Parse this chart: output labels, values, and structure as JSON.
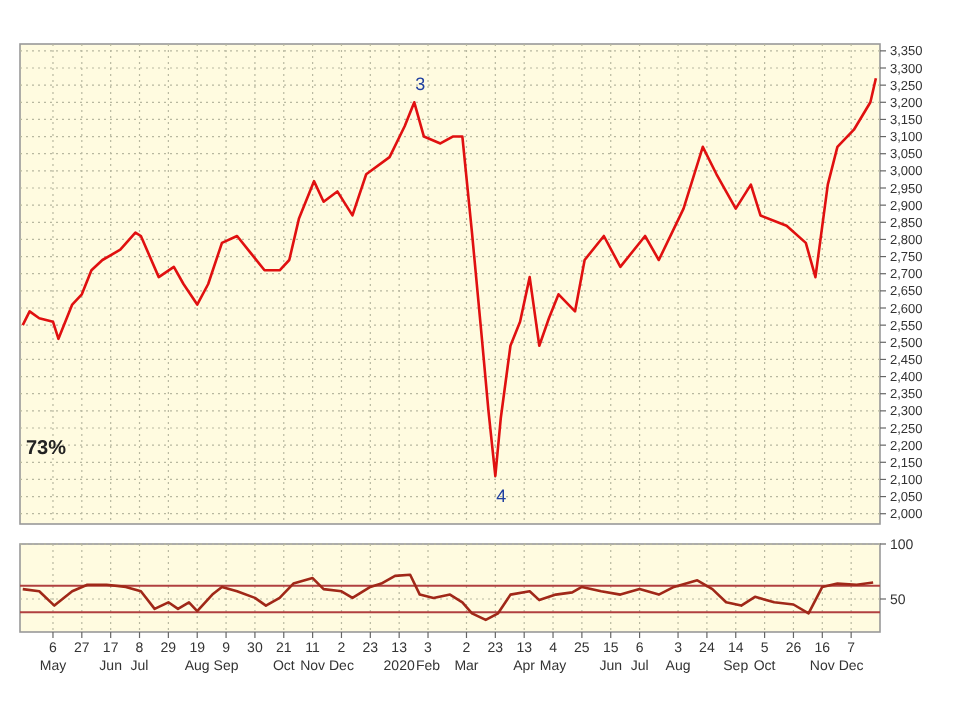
{
  "chart_data": [
    {
      "type": "line",
      "xlim": [
        "2019-04-12",
        "2020-12-28"
      ],
      "ylim": [
        1970,
        3370
      ],
      "yticks": [
        {
          "value": 2000,
          "label": "2,000"
        },
        {
          "value": 2050,
          "label": "2,050"
        },
        {
          "value": 2100,
          "label": "2,100"
        },
        {
          "value": 2150,
          "label": "2,150"
        },
        {
          "value": 2200,
          "label": "2,200"
        },
        {
          "value": 2250,
          "label": "2,250"
        },
        {
          "value": 2300,
          "label": "2,300"
        },
        {
          "value": 2350,
          "label": "2,350"
        },
        {
          "value": 2400,
          "label": "2,400"
        },
        {
          "value": 2450,
          "label": "2,450"
        },
        {
          "value": 2500,
          "label": "2,500"
        },
        {
          "value": 2550,
          "label": "2,550"
        },
        {
          "value": 2600,
          "label": "2,600"
        },
        {
          "value": 2650,
          "label": "2,650"
        },
        {
          "value": 2700,
          "label": "2,700"
        },
        {
          "value": 2750,
          "label": "2,750"
        },
        {
          "value": 2800,
          "label": "2,800"
        },
        {
          "value": 2850,
          "label": "2,850"
        },
        {
          "value": 2900,
          "label": "2,900"
        },
        {
          "value": 2950,
          "label": "2,950"
        },
        {
          "value": 3000,
          "label": "3,000"
        },
        {
          "value": 3050,
          "label": "3,050"
        },
        {
          "value": 3100,
          "label": "3,100"
        },
        {
          "value": 3150,
          "label": "3,150"
        },
        {
          "value": 3200,
          "label": "3,200"
        },
        {
          "value": 3250,
          "label": "3,250"
        },
        {
          "value": 3300,
          "label": "3,300"
        },
        {
          "value": 3350,
          "label": "3,350"
        }
      ],
      "xticks": [
        {
          "value": "2019-05-06",
          "label": null
        },
        {
          "value": "2019-05-27",
          "label": null
        },
        {
          "value": "2019-06-17",
          "label": null
        },
        {
          "value": "2019-07-08",
          "label": null
        },
        {
          "value": "2019-07-29",
          "label": null
        },
        {
          "value": "2019-08-19",
          "label": null
        },
        {
          "value": "2019-09-09",
          "label": null
        },
        {
          "value": "2019-09-30",
          "label": null
        },
        {
          "value": "2019-10-21",
          "label": null
        },
        {
          "value": "2019-11-11",
          "label": null
        },
        {
          "value": "2019-12-02",
          "label": null
        },
        {
          "value": "2019-12-23",
          "label": null
        },
        {
          "value": "2020-01-13",
          "label": null
        },
        {
          "value": "2020-02-03",
          "label": null
        },
        {
          "value": "2020-03-02",
          "label": null
        },
        {
          "value": "2020-03-23",
          "label": null
        },
        {
          "value": "2020-04-13",
          "label": null
        },
        {
          "value": "2020-05-04",
          "label": null
        },
        {
          "value": "2020-05-25",
          "label": null
        },
        {
          "value": "2020-06-15",
          "label": null
        },
        {
          "value": "2020-07-06",
          "label": null
        },
        {
          "value": "2020-08-03",
          "label": null
        },
        {
          "value": "2020-08-24",
          "label": null
        },
        {
          "value": "2020-09-14",
          "label": null
        },
        {
          "value": "2020-10-05",
          "label": null
        },
        {
          "value": "2020-10-26",
          "label": null
        },
        {
          "value": "2020-11-16",
          "label": null
        },
        {
          "value": "2020-12-07",
          "label": null
        }
      ],
      "tick_labels": "y",
      "grid": true,
      "series": [
        {
          "color": "#e01010",
          "x": [
            "2019-04-14",
            "2019-04-19",
            "2019-04-26",
            "2019-05-06",
            "2019-05-10",
            "2019-05-20",
            "2019-05-27",
            "2019-06-03",
            "2019-06-11",
            "2019-06-24",
            "2019-07-05",
            "2019-07-09",
            "2019-07-22",
            "2019-08-02",
            "2019-08-09",
            "2019-08-19",
            "2019-08-27",
            "2019-09-06",
            "2019-09-17",
            "2019-09-27",
            "2019-10-07",
            "2019-10-18",
            "2019-10-25",
            "2019-11-01",
            "2019-11-12",
            "2019-11-19",
            "2019-11-29",
            "2019-12-10",
            "2019-12-20",
            "2020-01-06",
            "2020-01-17",
            "2020-01-24",
            "2020-01-31",
            "2020-02-12",
            "2020-02-21",
            "2020-02-28",
            "2020-03-06",
            "2020-03-13",
            "2020-03-18",
            "2020-03-23",
            "2020-03-27",
            "2020-04-03",
            "2020-04-10",
            "2020-04-17",
            "2020-04-24",
            "2020-05-01",
            "2020-05-08",
            "2020-05-20",
            "2020-05-27",
            "2020-06-10",
            "2020-06-22",
            "2020-07-10",
            "2020-07-20",
            "2020-08-07",
            "2020-08-21",
            "2020-08-31",
            "2020-09-14",
            "2020-09-25",
            "2020-10-02",
            "2020-10-21",
            "2020-11-04",
            "2020-11-11",
            "2020-11-20",
            "2020-11-27",
            "2020-12-09",
            "2020-12-21",
            "2020-12-25"
          ],
          "values": [
            2550,
            2590,
            2570,
            2560,
            2510,
            2610,
            2640,
            2710,
            2740,
            2770,
            2820,
            2810,
            2690,
            2720,
            2670,
            2610,
            2670,
            2790,
            2810,
            2760,
            2710,
            2710,
            2740,
            2860,
            2970,
            2910,
            2940,
            2870,
            2990,
            3040,
            3130,
            3200,
            3100,
            3080,
            3100,
            3100,
            2820,
            2520,
            2300,
            2110,
            2280,
            2490,
            2560,
            2690,
            2490,
            2570,
            2640,
            2590,
            2740,
            2810,
            2720,
            2810,
            2740,
            2890,
            3070,
            2990,
            2890,
            2960,
            2870,
            2840,
            2790,
            2690,
            2960,
            3070,
            3120,
            3200,
            3270
          ]
        }
      ],
      "annotations": [
        {
          "text": "3",
          "x": "2020-01-24",
          "y": 3200
        },
        {
          "text": "4",
          "x": "2020-03-23",
          "y": 2110
        },
        "73%"
      ]
    },
    {
      "type": "line",
      "xlim": [
        "2019-04-12",
        "2020-12-28"
      ],
      "ylim": [
        20,
        100
      ],
      "yticks": [
        50,
        100
      ],
      "grid": true,
      "xticks": [
        {
          "value": "2019-05-06",
          "label": "6\nMay"
        },
        {
          "value": "2019-05-27",
          "label": "27"
        },
        {
          "value": "2019-06-17",
          "label": "17\nJun"
        },
        {
          "value": "2019-07-08",
          "label": "8\nJul"
        },
        {
          "value": "2019-07-29",
          "label": "29"
        },
        {
          "value": "2019-08-19",
          "label": "19\nAug"
        },
        {
          "value": "2019-09-09",
          "label": "9\nSep"
        },
        {
          "value": "2019-09-30",
          "label": "30"
        },
        {
          "value": "2019-10-21",
          "label": "21\nOct"
        },
        {
          "value": "2019-11-11",
          "label": "11\nNov"
        },
        {
          "value": "2019-12-02",
          "label": "2\nDec"
        },
        {
          "value": "2019-12-23",
          "label": "23"
        },
        {
          "value": "2020-01-13",
          "label": "13\n2020"
        },
        {
          "value": "2020-02-03",
          "label": "3\nFeb"
        },
        {
          "value": "2020-03-02",
          "label": "2\nMar"
        },
        {
          "value": "2020-03-23",
          "label": "23"
        },
        {
          "value": "2020-04-13",
          "label": "13\nApr"
        },
        {
          "value": "2020-05-04",
          "label": "4\nMay"
        },
        {
          "value": "2020-05-25",
          "label": "25"
        },
        {
          "value": "2020-06-15",
          "label": "15\nJun"
        },
        {
          "value": "2020-07-06",
          "label": "6\nJul"
        },
        {
          "value": "2020-08-03",
          "label": "3\nAug"
        },
        {
          "value": "2020-08-24",
          "label": "24"
        },
        {
          "value": "2020-09-14",
          "label": "14\nSep"
        },
        {
          "value": "2020-10-05",
          "label": "5\nOct"
        },
        {
          "value": "2020-10-26",
          "label": "26"
        },
        {
          "value": "2020-11-16",
          "label": "16\nNov"
        },
        {
          "value": "2020-12-07",
          "label": "7\nDec"
        }
      ],
      "ref_lines": [
        {
          "axis": "y",
          "value": 62,
          "color": "#b04040"
        },
        {
          "axis": "y",
          "value": 38,
          "color": "#b04040"
        }
      ],
      "series": [
        {
          "color": "#a02818",
          "x": [
            "2019-04-14",
            "2019-04-26",
            "2019-05-07",
            "2019-05-20",
            "2019-05-31",
            "2019-06-14",
            "2019-06-28",
            "2019-07-09",
            "2019-07-19",
            "2019-07-29",
            "2019-08-05",
            "2019-08-13",
            "2019-08-19",
            "2019-08-30",
            "2019-09-06",
            "2019-09-17",
            "2019-09-30",
            "2019-10-08",
            "2019-10-18",
            "2019-10-28",
            "2019-11-11",
            "2019-11-19",
            "2019-12-02",
            "2019-12-10",
            "2019-12-23",
            "2019-12-31",
            "2020-01-10",
            "2020-01-21",
            "2020-01-28",
            "2020-02-07",
            "2020-02-19",
            "2020-02-28",
            "2020-03-06",
            "2020-03-16",
            "2020-03-25",
            "2020-04-03",
            "2020-04-17",
            "2020-04-24",
            "2020-05-06",
            "2020-05-18",
            "2020-05-25",
            "2020-06-08",
            "2020-06-22",
            "2020-07-06",
            "2020-07-20",
            "2020-07-31",
            "2020-08-17",
            "2020-08-28",
            "2020-09-07",
            "2020-09-18",
            "2020-09-28",
            "2020-10-12",
            "2020-10-26",
            "2020-11-06",
            "2020-11-16",
            "2020-11-27",
            "2020-12-11",
            "2020-12-23"
          ],
          "values": [
            59,
            57,
            44,
            57,
            63,
            63,
            61,
            57,
            41,
            47,
            41,
            47,
            39,
            54,
            61,
            57,
            51,
            44,
            51,
            64,
            69,
            59,
            57,
            51,
            61,
            64,
            71,
            72,
            54,
            51,
            54,
            47,
            37,
            31,
            37,
            54,
            57,
            49,
            54,
            56,
            61,
            57,
            54,
            59,
            54,
            61,
            67,
            59,
            47,
            44,
            52,
            47,
            45,
            37,
            61,
            64,
            63,
            65
          ]
        }
      ]
    }
  ]
}
